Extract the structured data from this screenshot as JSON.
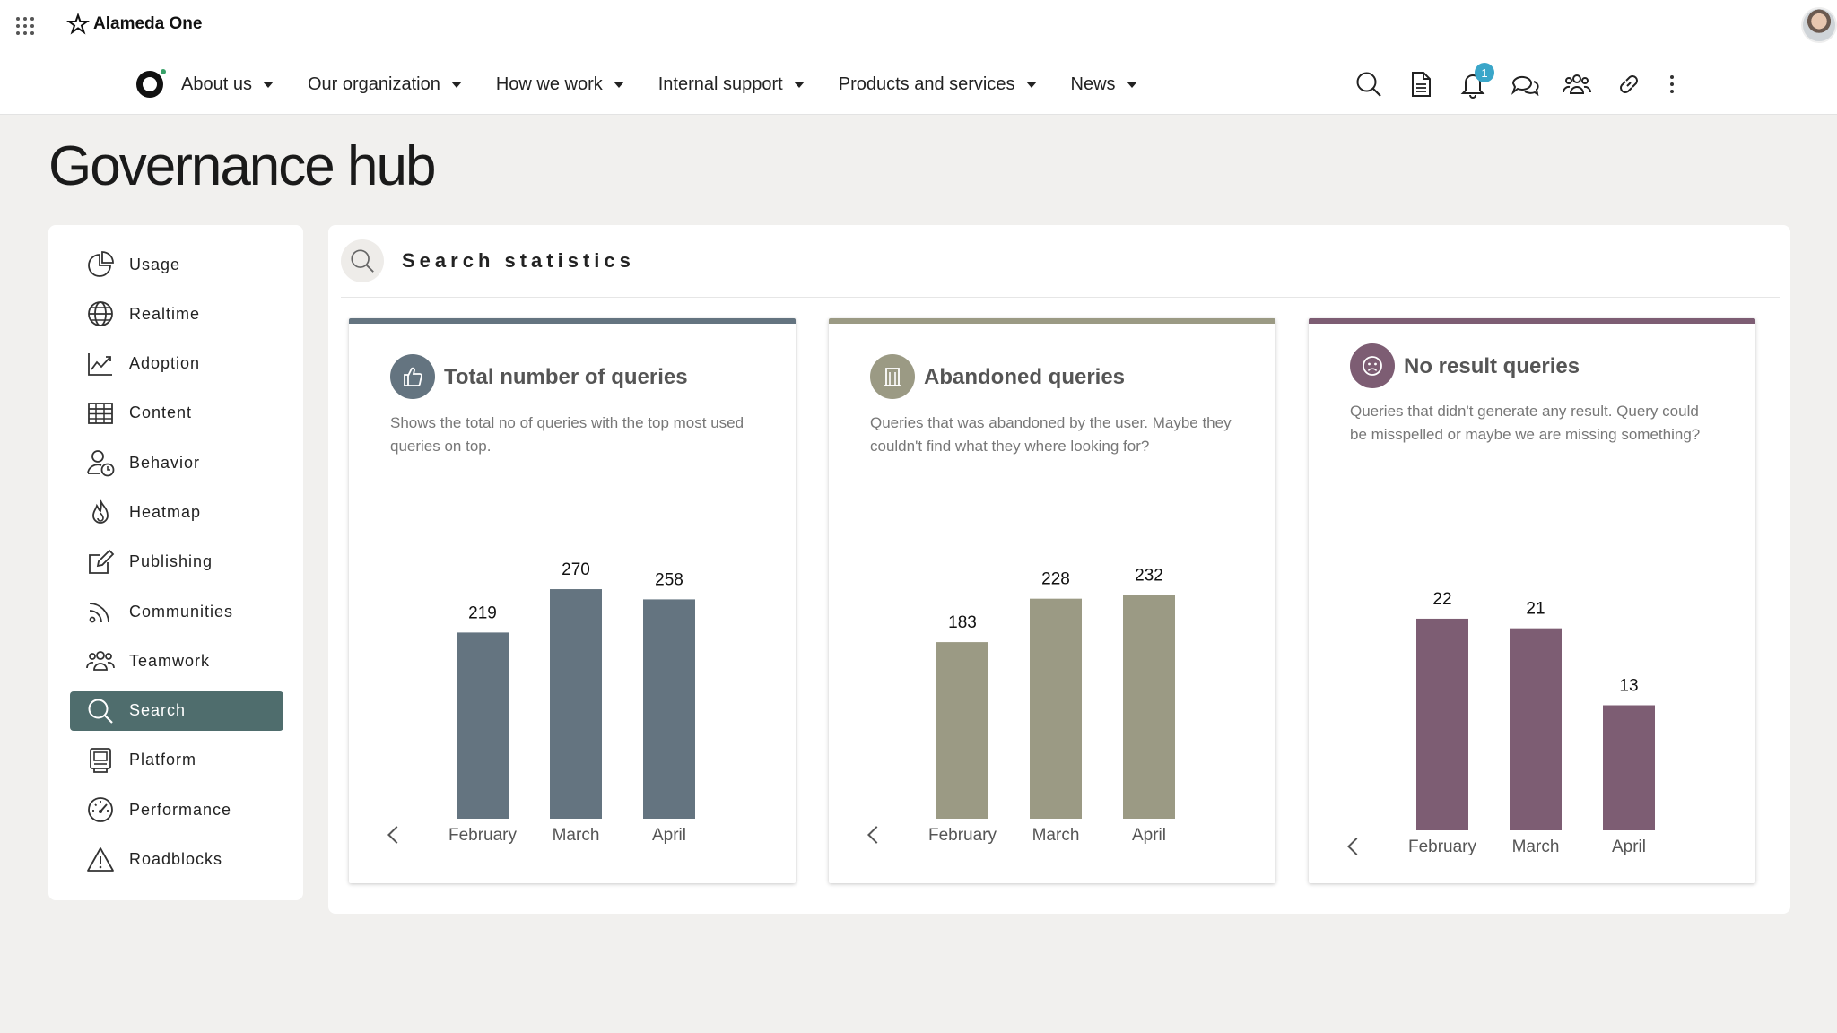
{
  "app": {
    "brand": "Alameda One"
  },
  "nav": {
    "items": [
      {
        "label": "About us"
      },
      {
        "label": "Our organization"
      },
      {
        "label": "How we work"
      },
      {
        "label": "Internal support"
      },
      {
        "label": "Products and services"
      },
      {
        "label": "News"
      }
    ],
    "notification_count": "1"
  },
  "page": {
    "title": "Governance hub"
  },
  "sidebar": {
    "items": [
      {
        "label": "Usage",
        "icon": "pie-chart-icon"
      },
      {
        "label": "Realtime",
        "icon": "globe-icon"
      },
      {
        "label": "Adoption",
        "icon": "trend-chart-icon"
      },
      {
        "label": "Content",
        "icon": "table-icon"
      },
      {
        "label": "Behavior",
        "icon": "user-clock-icon"
      },
      {
        "label": "Heatmap",
        "icon": "flame-icon"
      },
      {
        "label": "Publishing",
        "icon": "edit-icon"
      },
      {
        "label": "Communities",
        "icon": "feed-icon"
      },
      {
        "label": "Teamwork",
        "icon": "people-icon"
      },
      {
        "label": "Search",
        "icon": "search-icon",
        "active": true
      },
      {
        "label": "Platform",
        "icon": "platform-icon"
      },
      {
        "label": "Performance",
        "icon": "gauge-icon"
      },
      {
        "label": "Roadblocks",
        "icon": "warning-icon"
      }
    ],
    "active_color": "#4f6d6d"
  },
  "section": {
    "title": "Search statistics"
  },
  "cards": [
    {
      "title": "Total number of queries",
      "description": "Shows the total no of queries with the top most used queries on top.",
      "icon": "thumbs-up-icon",
      "color": "#647480"
    },
    {
      "title": "Abandoned queries",
      "description": "Queries that was abandoned by the user. Maybe they couldn't find what they where looking for?",
      "icon": "building-icon",
      "color": "#9b9a84"
    },
    {
      "title": "No result queries",
      "description": "Queries that didn't generate any result. Query could be misspelled or maybe we are missing something?",
      "icon": "sad-face-icon",
      "color": "#7d5d73"
    }
  ],
  "chart_data": [
    {
      "type": "bar",
      "categories": [
        "February",
        "March",
        "April"
      ],
      "values": [
        219,
        270,
        258
      ],
      "color": "#647480"
    },
    {
      "type": "bar",
      "categories": [
        "February",
        "March",
        "April"
      ],
      "values": [
        183,
        228,
        232
      ],
      "color": "#9b9a84"
    },
    {
      "type": "bar",
      "categories": [
        "February",
        "March",
        "April"
      ],
      "values": [
        22,
        21,
        13
      ],
      "color": "#7d5d73"
    }
  ]
}
